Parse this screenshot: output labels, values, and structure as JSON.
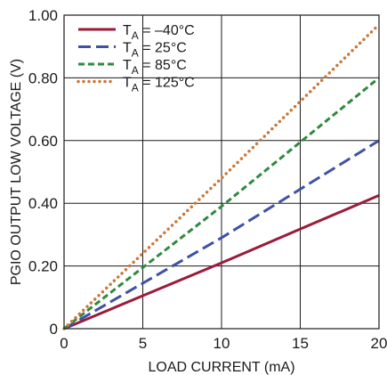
{
  "chart_data": {
    "type": "line",
    "title": "",
    "xlabel": "LOAD CURRENT (mA)",
    "ylabel": "PGIO OUTPUT LOW VOLTAGE (V)",
    "xlim": [
      0,
      20
    ],
    "ylim": [
      0,
      1.0
    ],
    "x_ticks": [
      0,
      5,
      10,
      15,
      20
    ],
    "y_ticks": [
      0,
      0.2,
      0.4,
      0.6,
      0.8,
      1.0
    ],
    "x_tick_labels": [
      "0",
      "5",
      "10",
      "15",
      "20"
    ],
    "y_tick_labels": [
      "0",
      "0.20",
      "0.40",
      "0.60",
      "0.80",
      "1.00"
    ],
    "grid": true,
    "legend_position": "top-left",
    "series": [
      {
        "name_main": "T",
        "name_sub": "A",
        "name_rest": " = –40°C",
        "color": "#9b1b3a",
        "style": "solid",
        "x": [
          0,
          5,
          10,
          15,
          20
        ],
        "y": [
          0,
          0.105,
          0.21,
          0.318,
          0.425
        ]
      },
      {
        "name_main": "T",
        "name_sub": "A",
        "name_rest": " = 25°C",
        "color": "#3f51a5",
        "style": "dashed",
        "x": [
          0,
          5,
          10,
          15,
          20
        ],
        "y": [
          0,
          0.145,
          0.29,
          0.445,
          0.6
        ]
      },
      {
        "name_main": "T",
        "name_sub": "A",
        "name_rest": " = 85°C",
        "color": "#2e8a3e",
        "style": "short-dashed",
        "x": [
          0,
          5,
          10,
          15,
          20
        ],
        "y": [
          0,
          0.195,
          0.39,
          0.595,
          0.8
        ]
      },
      {
        "name_main": "T",
        "name_sub": "A",
        "name_rest": " = 125°C",
        "color": "#c8783a",
        "style": "dotted",
        "x": [
          0,
          5,
          10,
          15,
          20
        ],
        "y": [
          0,
          0.24,
          0.48,
          0.725,
          0.97
        ]
      }
    ]
  }
}
